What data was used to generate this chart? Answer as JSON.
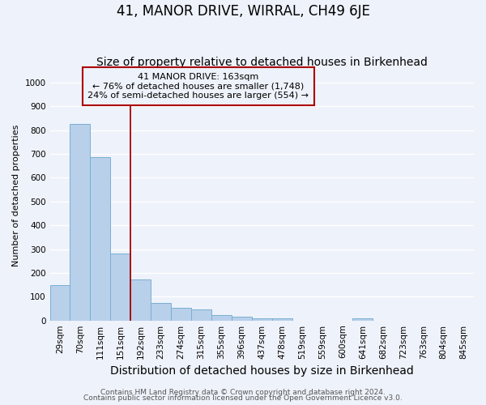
{
  "title": "41, MANOR DRIVE, WIRRAL, CH49 6JE",
  "subtitle": "Size of property relative to detached houses in Birkenhead",
  "xlabel": "Distribution of detached houses by size in Birkenhead",
  "ylabel": "Number of detached properties",
  "categories": [
    "29sqm",
    "70sqm",
    "111sqm",
    "151sqm",
    "192sqm",
    "233sqm",
    "274sqm",
    "315sqm",
    "355sqm",
    "396sqm",
    "437sqm",
    "478sqm",
    "519sqm",
    "559sqm",
    "600sqm",
    "641sqm",
    "682sqm",
    "723sqm",
    "763sqm",
    "804sqm",
    "845sqm"
  ],
  "values": [
    148,
    825,
    685,
    280,
    172,
    75,
    52,
    45,
    22,
    15,
    10,
    8,
    0,
    0,
    0,
    10,
    0,
    0,
    0,
    0,
    0
  ],
  "bar_color": "#b8d0ea",
  "bar_edge_color": "#7aafd4",
  "bar_edge_width": 0.7,
  "red_line_x": 3.5,
  "red_line_color": "#aa0000",
  "annotation_box_color": "#aa0000",
  "annotation_text_line1": "41 MANOR DRIVE: 163sqm",
  "annotation_text_line2": "← 76% of detached houses are smaller (1,748)",
  "annotation_text_line3": "24% of semi-detached houses are larger (554) →",
  "ylim": [
    0,
    1050
  ],
  "yticks": [
    0,
    100,
    200,
    300,
    400,
    500,
    600,
    700,
    800,
    900,
    1000
  ],
  "footer_line1": "Contains HM Land Registry data © Crown copyright and database right 2024.",
  "footer_line2": "Contains public sector information licensed under the Open Government Licence v3.0.",
  "background_color": "#eef2fa",
  "grid_color": "#ffffff",
  "title_fontsize": 12,
  "subtitle_fontsize": 10,
  "xlabel_fontsize": 10,
  "ylabel_fontsize": 8,
  "tick_fontsize": 7.5,
  "annotation_fontsize": 8,
  "footer_fontsize": 6.5
}
